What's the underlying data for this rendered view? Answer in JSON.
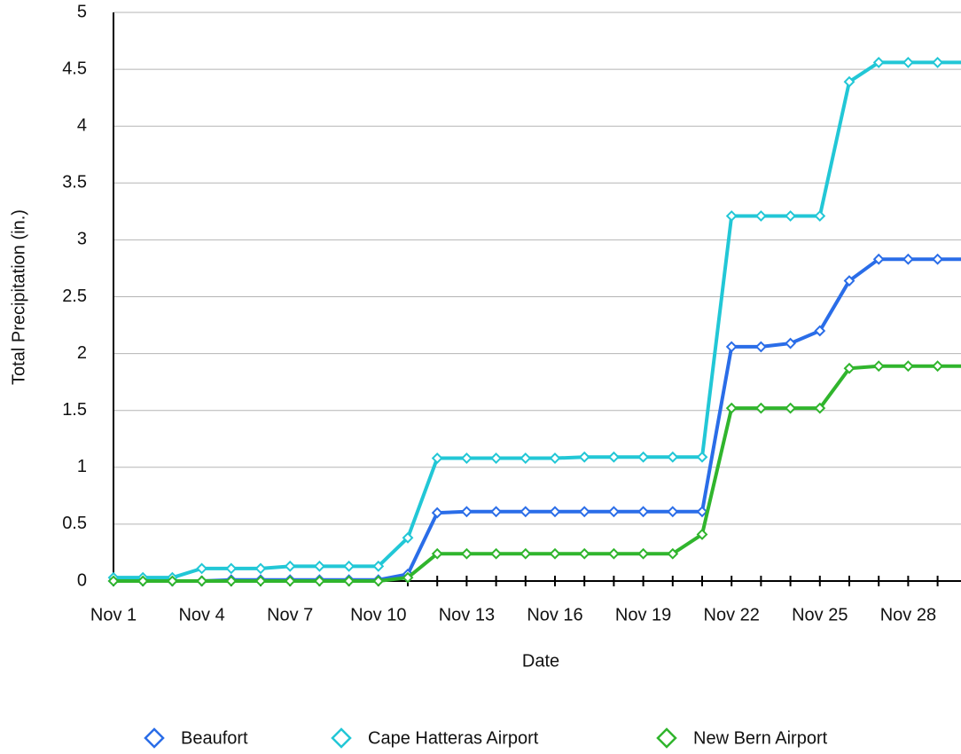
{
  "chart_data": {
    "type": "line",
    "x_label": "Date",
    "y_label": "Total Precipitation (in.)",
    "categories": [
      "Nov 1",
      null,
      null,
      "Nov 4",
      null,
      null,
      "Nov 7",
      null,
      null,
      "Nov 10",
      null,
      null,
      "Nov 13",
      null,
      null,
      "Nov 16",
      null,
      null,
      "Nov 19",
      null,
      null,
      "Nov 22",
      null,
      null,
      "Nov 25",
      null,
      null,
      "Nov 28",
      null,
      null
    ],
    "series": [
      {
        "name": "Beaufort",
        "color": "#2a6de8",
        "values": [
          0,
          0,
          0,
          0,
          0.01,
          0.01,
          0.01,
          0.01,
          0.01,
          0.01,
          0.06,
          0.6,
          0.61,
          0.61,
          0.61,
          0.61,
          0.61,
          0.61,
          0.61,
          0.61,
          0.61,
          2.06,
          2.06,
          2.09,
          2.2,
          2.64,
          2.83,
          2.83,
          2.83,
          2.83
        ]
      },
      {
        "name": "Cape Hatteras Airport",
        "color": "#22c7d6",
        "values": [
          0.03,
          0.03,
          0.03,
          0.11,
          0.11,
          0.11,
          0.13,
          0.13,
          0.13,
          0.13,
          0.38,
          1.08,
          1.08,
          1.08,
          1.08,
          1.08,
          1.09,
          1.09,
          1.09,
          1.09,
          1.09,
          3.21,
          3.21,
          3.21,
          3.21,
          4.39,
          4.56,
          4.56,
          4.56,
          4.56
        ]
      },
      {
        "name": "New Bern Airport",
        "color": "#30b52d",
        "values": [
          0,
          0,
          0,
          0,
          0,
          0,
          0,
          0,
          0,
          0,
          0.03,
          0.24,
          0.24,
          0.24,
          0.24,
          0.24,
          0.24,
          0.24,
          0.24,
          0.24,
          0.41,
          1.52,
          1.52,
          1.52,
          1.52,
          1.87,
          1.89,
          1.89,
          1.89,
          1.89
        ]
      }
    ],
    "ylim": [
      0,
      5
    ],
    "yticks": [
      0,
      0.5,
      1,
      1.5,
      2,
      2.5,
      3,
      3.5,
      4,
      4.5,
      5
    ],
    "grid": true,
    "legend": "bottom"
  }
}
